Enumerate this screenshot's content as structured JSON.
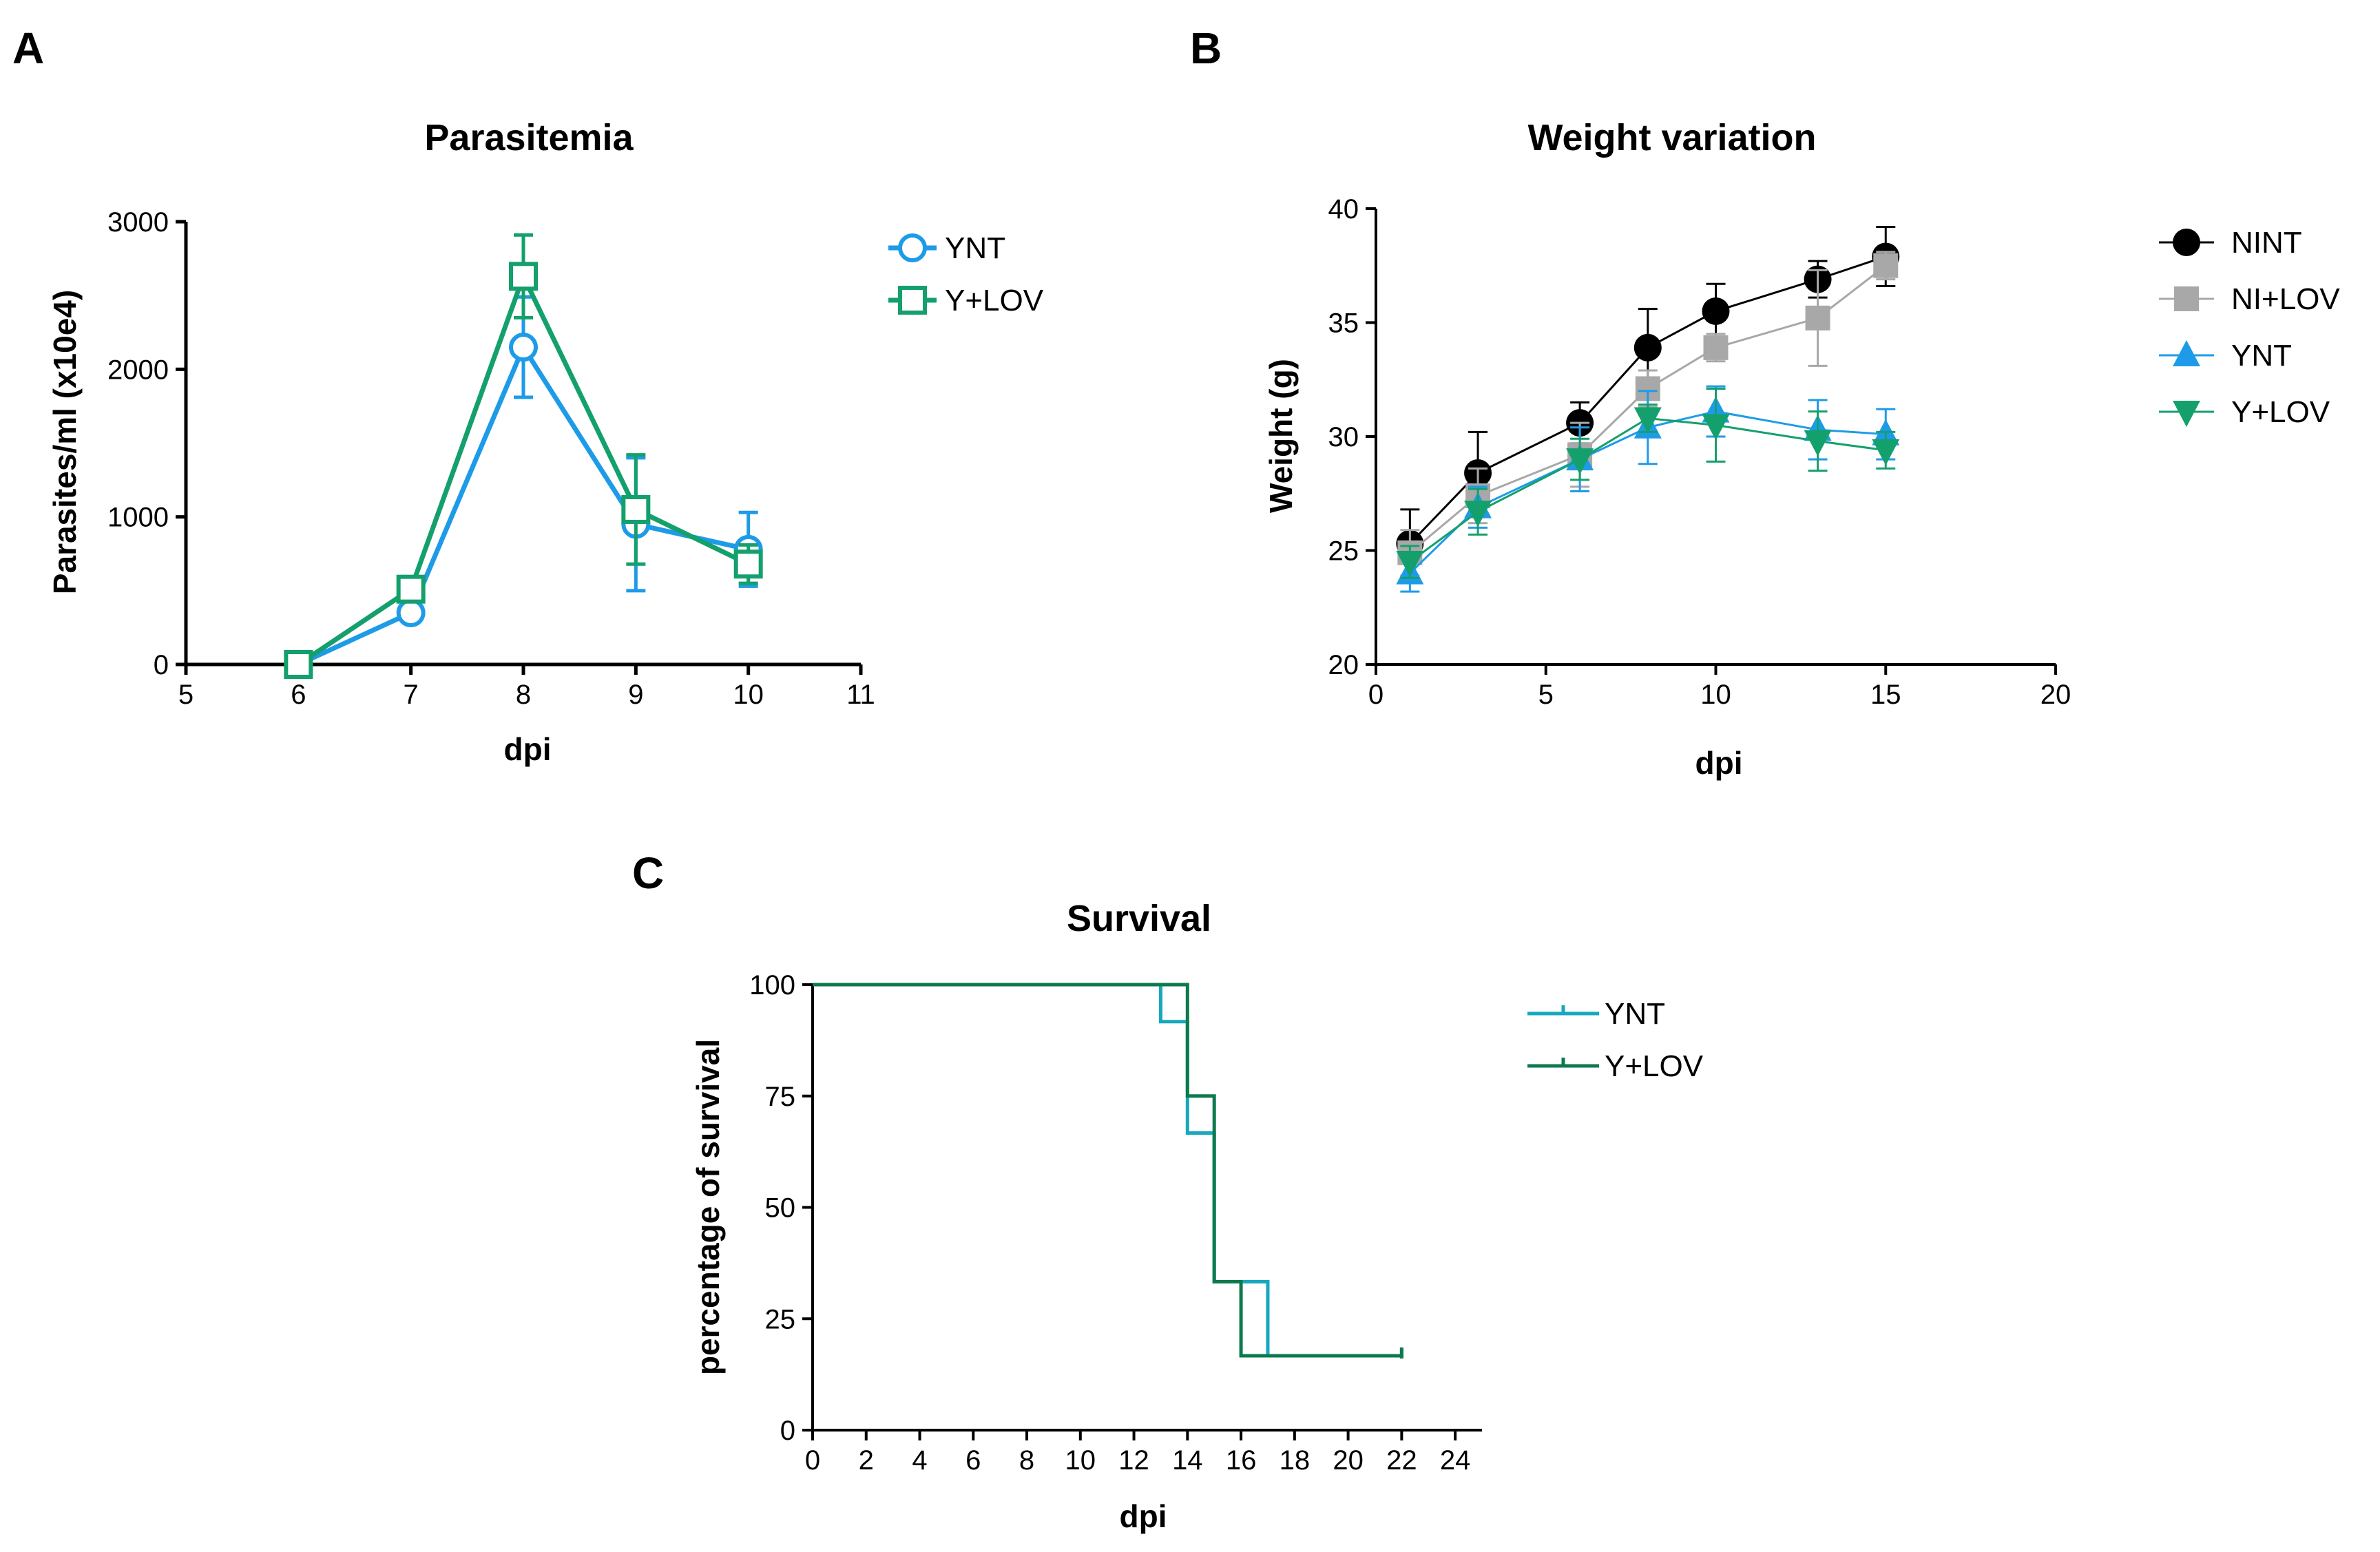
{
  "panels": [
    {
      "letter": "A",
      "chart_data": {
        "type": "line",
        "title": "Parasitemia",
        "xlabel": "dpi",
        "ylabel": "Parasites/ml (x10e4)",
        "xlim": [
          5,
          11
        ],
        "ylim": [
          0,
          3000
        ],
        "xticks": [
          5,
          6,
          7,
          8,
          9,
          10,
          11
        ],
        "yticks": [
          0,
          1000,
          2000,
          3000
        ],
        "legend_position": "top-right outside",
        "series": [
          {
            "name": "YNT",
            "color": "#1e9be8",
            "marker": "circle-open",
            "x": [
              6,
              7,
              8,
              9,
              10
            ],
            "y": [
              0,
              350,
              2150,
              950,
              780
            ],
            "err": [
              0,
              0,
              340,
              450,
              250
            ]
          },
          {
            "name": "Y+LOV",
            "color": "#14a06c",
            "marker": "square-open",
            "x": [
              6,
              7,
              8,
              9,
              10
            ],
            "y": [
              0,
              510,
              2630,
              1050,
              680
            ],
            "err": [
              0,
              0,
              280,
              370,
              130
            ]
          }
        ]
      }
    },
    {
      "letter": "B",
      "chart_data": {
        "type": "line",
        "title": "Weight variation",
        "xlabel": "dpi",
        "ylabel": "Weight (g)",
        "xlim": [
          0,
          20
        ],
        "ylim": [
          20,
          40
        ],
        "xticks": [
          0,
          5,
          10,
          15,
          20
        ],
        "yticks": [
          20,
          25,
          30,
          35,
          40
        ],
        "legend_position": "top-right outside",
        "series": [
          {
            "name": "NINT",
            "color": "#000000",
            "marker": "circle-filled",
            "x": [
              1,
              3,
              6,
              8,
              10,
              13,
              15
            ],
            "y": [
              25.3,
              28.4,
              30.6,
              33.9,
              35.5,
              36.9,
              37.9
            ],
            "err": [
              1.5,
              1.8,
              0.9,
              1.7,
              1.2,
              0.8,
              1.3
            ]
          },
          {
            "name": "NI+LOV",
            "color": "#a8a8a8",
            "marker": "square-filled",
            "x": [
              1,
              3,
              6,
              8,
              10,
              13,
              15
            ],
            "y": [
              24.9,
              27.4,
              29.2,
              32.1,
              33.9,
              35.2,
              37.5
            ],
            "err": [
              1.0,
              1.2,
              1.4,
              0.8,
              0.6,
              2.1,
              0.6
            ]
          },
          {
            "name": "YNT",
            "color": "#1e9be8",
            "marker": "triangle-up",
            "x": [
              1,
              3,
              6,
              8,
              10,
              13,
              15
            ],
            "y": [
              24.0,
              26.9,
              29.0,
              30.4,
              31.1,
              30.3,
              30.1
            ],
            "err": [
              0.8,
              0.9,
              1.4,
              1.6,
              1.1,
              1.3,
              1.1
            ]
          },
          {
            "name": "Y+LOV",
            "color": "#14a06c",
            "marker": "triangle-down",
            "x": [
              1,
              3,
              6,
              8,
              10,
              13,
              15
            ],
            "y": [
              24.5,
              26.7,
              29.0,
              30.8,
              30.5,
              29.8,
              29.4
            ],
            "err": [
              0.7,
              1.0,
              0.9,
              0.6,
              1.6,
              1.3,
              0.8
            ]
          }
        ]
      }
    },
    {
      "letter": "C",
      "chart_data": {
        "type": "line",
        "step": true,
        "title": "Survival",
        "xlabel": "dpi",
        "ylabel": "percentage of survival",
        "xlim": [
          0,
          25
        ],
        "ylim": [
          0,
          100
        ],
        "xticks": [
          0,
          2,
          4,
          6,
          8,
          10,
          12,
          14,
          16,
          18,
          20,
          22,
          24
        ],
        "yticks": [
          0,
          25,
          50,
          75,
          100
        ],
        "legend_position": "top-right outside",
        "series": [
          {
            "name": "YNT",
            "color": "#17a8bd",
            "x": [
              0,
              13,
              14,
              15,
              17,
              22
            ],
            "y": [
              100,
              91.7,
              66.7,
              33.3,
              16.7,
              16.7
            ]
          },
          {
            "name": "Y+LOV",
            "color": "#0d7a4d",
            "x": [
              0,
              14,
              15,
              16,
              22
            ],
            "y": [
              100,
              75,
              33.3,
              16.7,
              16.7
            ]
          }
        ]
      }
    }
  ]
}
